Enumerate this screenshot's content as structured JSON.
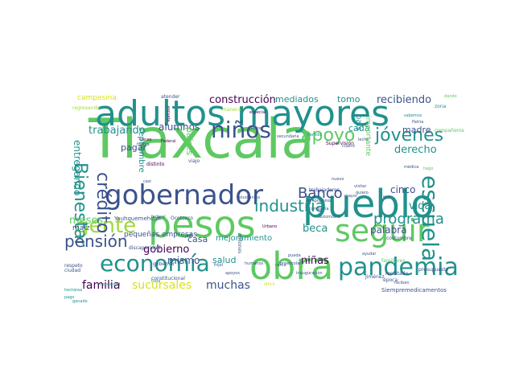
{
  "palette": {
    "viridis_dark": "#440154",
    "indigo": "#3b528b",
    "teal": "#21918c",
    "green": "#5ec962",
    "lime": "#9dd93b",
    "yellow": "#d8e219"
  },
  "words": [
    "Tlaxcala",
    "adultos mayores",
    "pesos",
    "pueblo",
    "obra",
    "gobernador",
    "economía",
    "seguir",
    "pandemia",
    "escuela",
    "niños",
    "gente",
    "Bienestar",
    "crédito",
    "apoyo",
    "jóvenes",
    "Banco",
    "industria",
    "pensión",
    "programa",
    "familia",
    "sucursales",
    "muchas",
    "construcción",
    "recibiendo",
    "mediados",
    "tomo",
    "trabajando",
    "alumnos",
    "derecho",
    "madre",
    "vida",
    "beca",
    "palabra",
    "cinco",
    "gobierno",
    "niñas",
    "mismo",
    "salud",
    "casa",
    "mejoramiento",
    "meses",
    "entregando",
    "septiembre",
    "pagar",
    "países",
    "cada",
    "país",
    "importante",
    "campesina",
    "pequeñas empresas",
    "maíz",
    "Yauhquemehcan",
    "Ocotoxco",
    "Supervisión",
    "Siempremedicamentos",
    "resultado",
    "Jiménez",
    "época",
    "costumbre",
    "trabajadores",
    "compañía",
    "compromiso",
    "estudiantes",
    "millones",
    "federal",
    "necesidad",
    "constitucional",
    "preescolar",
    "inauguración",
    "humanos",
    "cerca",
    "atender",
    "secundaria",
    "padres",
    "leche",
    "cuatro",
    "quiero",
    "automotriz",
    "mayor",
    "fijar",
    "familiares",
    "zona",
    "dando",
    "médica",
    "Patria",
    "sabemos",
    "compañeros",
    "Partido",
    "respeto",
    "discapacidad",
    "gobernar",
    "frijol",
    "difícil",
    "ayudar",
    "apoyos",
    "visitar",
    "ciudad",
    "hectárea",
    "viajo",
    "Urbano",
    "José",
    "pueda",
    "nuevo",
    "reciben",
    "presupuesto",
    "manera",
    "especial",
    "pago",
    "ganado",
    "fuerza",
    "veces",
    "distinto",
    "casi",
    "Federal",
    "toda",
    "regresando",
    "escuela",
    "hago",
    "siete",
    "alimentación"
  ]
}
